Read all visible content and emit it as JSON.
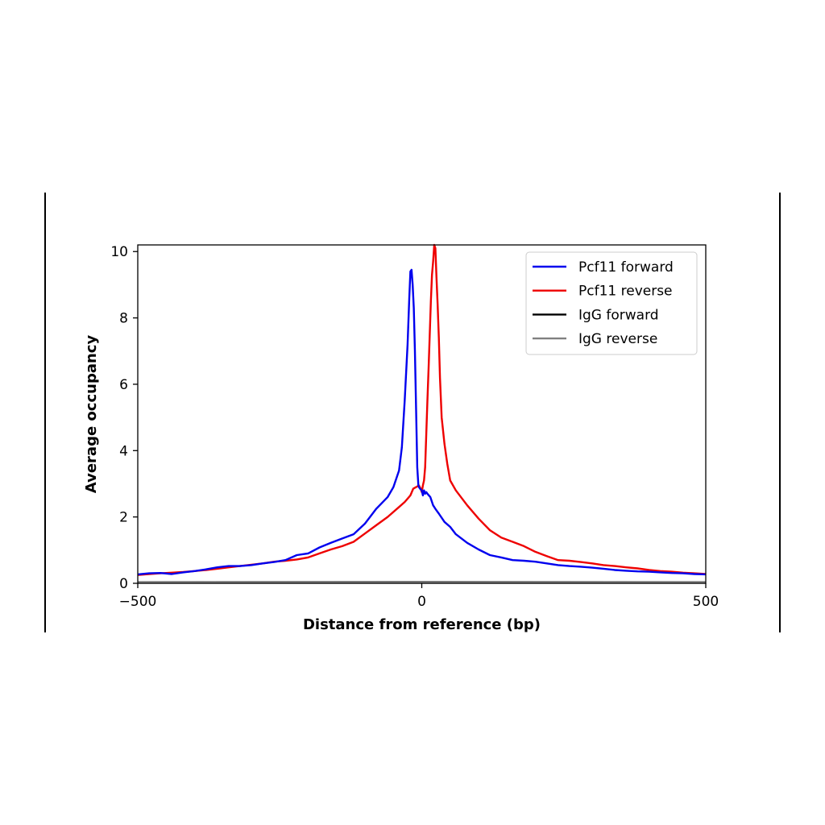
{
  "chart_data": {
    "type": "line",
    "title": "",
    "xlabel": "Distance from reference (bp)",
    "ylabel": "Average occupancy",
    "xlim": [
      -500,
      500
    ],
    "ylim": [
      0,
      10.2
    ],
    "x_ticks": [
      -500,
      0,
      500
    ],
    "x_tick_labels": [
      "−500",
      "0",
      "500"
    ],
    "y_ticks": [
      0,
      2,
      4,
      6,
      8,
      10
    ],
    "y_tick_labels": [
      "0",
      "2",
      "4",
      "6",
      "8",
      "10"
    ],
    "grid": false,
    "legend_position": "top-right",
    "series": [
      {
        "name": "Pcf11 forward",
        "color": "#0000ee",
        "x": [
          -500,
          -480,
          -460,
          -440,
          -420,
          -400,
          -380,
          -360,
          -340,
          -320,
          -300,
          -280,
          -260,
          -240,
          -220,
          -200,
          -180,
          -160,
          -140,
          -120,
          -100,
          -80,
          -60,
          -50,
          -40,
          -35,
          -30,
          -25,
          -22,
          -20,
          -18,
          -16,
          -14,
          -12,
          -10,
          -8,
          -6,
          -5,
          -3,
          0,
          2,
          4,
          6,
          8,
          10,
          15,
          20,
          25,
          30,
          40,
          50,
          60,
          80,
          100,
          120,
          140,
          160,
          180,
          200,
          220,
          240,
          260,
          280,
          300,
          320,
          340,
          360,
          380,
          400,
          420,
          440,
          460,
          480,
          500
        ],
        "y": [
          0.27,
          0.3,
          0.31,
          0.28,
          0.33,
          0.37,
          0.42,
          0.48,
          0.52,
          0.52,
          0.55,
          0.6,
          0.64,
          0.7,
          0.85,
          0.9,
          1.08,
          1.22,
          1.35,
          1.48,
          1.8,
          2.25,
          2.6,
          2.9,
          3.4,
          4.1,
          5.5,
          7.2,
          8.6,
          9.4,
          9.45,
          9.0,
          8.3,
          7.0,
          5.2,
          3.5,
          2.95,
          2.9,
          2.85,
          2.8,
          2.65,
          2.8,
          2.7,
          2.75,
          2.7,
          2.6,
          2.35,
          2.22,
          2.1,
          1.85,
          1.7,
          1.48,
          1.22,
          1.02,
          0.85,
          0.78,
          0.7,
          0.68,
          0.65,
          0.6,
          0.55,
          0.52,
          0.5,
          0.47,
          0.44,
          0.4,
          0.38,
          0.36,
          0.35,
          0.33,
          0.31,
          0.3,
          0.28,
          0.27
        ]
      },
      {
        "name": "Pcf11 reverse",
        "color": "#ee0000",
        "x": [
          -500,
          -480,
          -460,
          -440,
          -420,
          -400,
          -380,
          -360,
          -340,
          -320,
          -300,
          -280,
          -260,
          -240,
          -220,
          -200,
          -180,
          -160,
          -140,
          -120,
          -100,
          -80,
          -60,
          -40,
          -30,
          -20,
          -15,
          -10,
          -5,
          -2,
          0,
          2,
          4,
          6,
          8,
          10,
          12,
          14,
          16,
          18,
          20,
          22,
          24,
          26,
          28,
          30,
          32,
          35,
          40,
          45,
          50,
          60,
          80,
          100,
          120,
          140,
          160,
          180,
          200,
          220,
          240,
          260,
          280,
          300,
          320,
          340,
          360,
          380,
          400,
          420,
          440,
          460,
          480,
          500
        ],
        "y": [
          0.25,
          0.28,
          0.3,
          0.32,
          0.34,
          0.37,
          0.4,
          0.44,
          0.48,
          0.52,
          0.56,
          0.6,
          0.65,
          0.68,
          0.72,
          0.78,
          0.9,
          1.02,
          1.12,
          1.25,
          1.5,
          1.75,
          2.0,
          2.3,
          2.45,
          2.65,
          2.85,
          2.9,
          2.95,
          2.85,
          2.75,
          2.95,
          3.1,
          3.5,
          4.5,
          5.5,
          6.5,
          7.5,
          8.5,
          9.3,
          9.7,
          10.2,
          10.1,
          9.2,
          8.4,
          7.4,
          6.2,
          5.0,
          4.2,
          3.6,
          3.1,
          2.8,
          2.35,
          1.95,
          1.6,
          1.38,
          1.25,
          1.12,
          0.95,
          0.82,
          0.7,
          0.68,
          0.64,
          0.6,
          0.55,
          0.52,
          0.48,
          0.45,
          0.4,
          0.37,
          0.35,
          0.32,
          0.3,
          0.28
        ]
      },
      {
        "name": "IgG forward",
        "color": "#000000",
        "x": [
          -500,
          0,
          500
        ],
        "y": [
          0.03,
          0.04,
          0.03
        ]
      },
      {
        "name": "IgG reverse",
        "color": "#808080",
        "x": [
          -500,
          0,
          500
        ],
        "y": [
          0.02,
          0.03,
          0.02
        ]
      }
    ]
  }
}
